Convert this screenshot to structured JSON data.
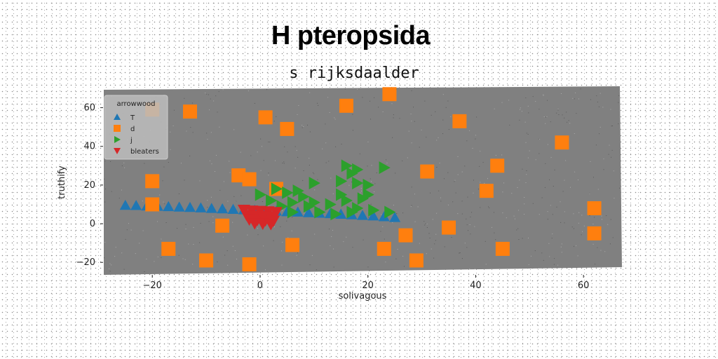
{
  "title": "H pteropsida",
  "subtitle": "s rijksdaalder",
  "colors": {
    "background": "#808080",
    "T": "#1f77b4",
    "d": "#ff7f0e",
    "j": "#2ca02c",
    "bleaters": "#d62728"
  },
  "chart_data": {
    "type": "scatter",
    "title": "H pteropsida",
    "subtitle": "s rijksdaalder",
    "xlabel": "solivagous",
    "ylabel": "truthify",
    "xlim": [
      -29,
      67
    ],
    "ylim": [
      -25,
      70
    ],
    "xticks": [
      -20,
      0,
      20,
      40,
      60
    ],
    "yticks": [
      -20,
      0,
      20,
      40,
      60
    ],
    "xtick_labels": [
      "−20",
      "0",
      "20",
      "40",
      "60"
    ],
    "ytick_labels": [
      "−20",
      "0",
      "20",
      "40",
      "60"
    ],
    "grid": false,
    "legend": {
      "title": "arrowwood",
      "position": "top-left"
    },
    "series": [
      {
        "name": "T",
        "marker": "triangle-up",
        "color": "#1f77b4",
        "points": [
          [
            -25,
            9.5
          ],
          [
            -23,
            9.4
          ],
          [
            -21,
            9.2
          ],
          [
            -19,
            9.0
          ],
          [
            -17,
            8.8
          ],
          [
            -15,
            8.6
          ],
          [
            -13,
            8.4
          ],
          [
            -11,
            8.2
          ],
          [
            -9,
            7.9
          ],
          [
            -7,
            7.7
          ],
          [
            -5,
            7.4
          ],
          [
            -3,
            7.2
          ],
          [
            -1,
            7.0
          ],
          [
            1,
            6.7
          ],
          [
            3,
            6.5
          ],
          [
            5,
            6.2
          ],
          [
            7,
            6.0
          ],
          [
            9,
            5.7
          ],
          [
            11,
            5.4
          ],
          [
            13,
            5.2
          ],
          [
            15,
            4.9
          ],
          [
            17,
            4.6
          ],
          [
            19,
            4.3
          ],
          [
            21,
            4.0
          ],
          [
            23,
            3.6
          ],
          [
            25,
            3.2
          ]
        ]
      },
      {
        "name": "d",
        "marker": "square",
        "color": "#ff7f0e",
        "points": [
          [
            -20,
            59
          ],
          [
            -13,
            58
          ],
          [
            1,
            55
          ],
          [
            5,
            49
          ],
          [
            16,
            61
          ],
          [
            24,
            67
          ],
          [
            37,
            53
          ],
          [
            56,
            42
          ],
          [
            -20,
            22
          ],
          [
            -4,
            25
          ],
          [
            -2,
            23
          ],
          [
            3,
            18
          ],
          [
            31,
            27
          ],
          [
            44,
            30
          ],
          [
            42,
            17
          ],
          [
            -20,
            10
          ],
          [
            -7,
            -1
          ],
          [
            62,
            8
          ],
          [
            35,
            -2
          ],
          [
            27,
            -6
          ],
          [
            62,
            -5
          ],
          [
            -17,
            -13
          ],
          [
            6,
            -11
          ],
          [
            23,
            -13
          ],
          [
            45,
            -13
          ],
          [
            -10,
            -19
          ],
          [
            -2,
            -21
          ],
          [
            29,
            -19
          ]
        ]
      },
      {
        "name": "j",
        "marker": "triangle-right",
        "color": "#2ca02c",
        "points": [
          [
            16,
            30
          ],
          [
            18,
            28
          ],
          [
            23,
            29
          ],
          [
            17,
            26
          ],
          [
            10,
            21
          ],
          [
            15,
            22
          ],
          [
            18,
            21
          ],
          [
            20,
            20
          ],
          [
            3,
            18
          ],
          [
            5,
            16
          ],
          [
            7,
            17
          ],
          [
            0,
            15
          ],
          [
            8,
            14
          ],
          [
            15,
            15
          ],
          [
            20,
            15
          ],
          [
            2,
            12
          ],
          [
            6,
            11
          ],
          [
            10,
            11
          ],
          [
            16,
            12
          ],
          [
            19,
            13
          ],
          [
            4,
            9
          ],
          [
            9,
            9
          ],
          [
            13,
            10
          ],
          [
            18,
            8
          ],
          [
            21,
            7
          ],
          [
            6,
            6
          ],
          [
            11,
            6
          ],
          [
            14,
            5
          ],
          [
            17,
            6
          ],
          [
            24,
            6
          ]
        ]
      },
      {
        "name": "bleaters",
        "marker": "triangle-down",
        "color": "#d62728",
        "points": [
          [
            -3,
            7.2
          ],
          [
            -1.5,
            6.8
          ],
          [
            0,
            6.6
          ],
          [
            1.5,
            6.4
          ],
          [
            3,
            6.0
          ],
          [
            -2.5,
            4.5
          ],
          [
            -1,
            4.2
          ],
          [
            0.5,
            4.0
          ],
          [
            2,
            3.8
          ],
          [
            -2,
            2.2
          ],
          [
            -0.5,
            2.0
          ],
          [
            1,
            1.8
          ],
          [
            2.5,
            1.6
          ],
          [
            -1,
            0.2
          ],
          [
            0.5,
            0.0
          ],
          [
            2,
            -0.2
          ]
        ]
      }
    ]
  }
}
